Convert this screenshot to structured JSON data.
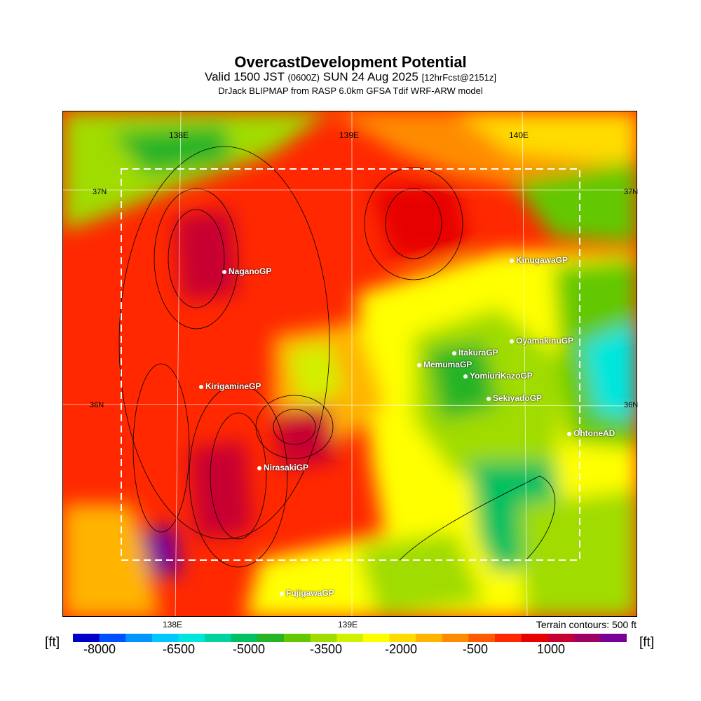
{
  "title": "OvercastDevelopment Potential",
  "subtitle_main": "Valid 1500 JST",
  "subtitle_z": "(0600Z)",
  "subtitle_date": "SUN 24 Aug 2025",
  "subtitle_fcst": "[12hrFcst@2151z]",
  "source": "DrJack BLIPMAP from RASP 6.0km GFSA Tdif WRF-ARW model",
  "terrain_note": "Terrain contours: 500 ft",
  "unit_left": "[ft]",
  "unit_right": "[ft]",
  "lon_labels": {
    "a": "138E",
    "b": "139E",
    "c": "140E"
  },
  "lat_labels": {
    "n37": "37N",
    "n36": "36N"
  },
  "bottom_lon": {
    "a": "138E",
    "b": "139E"
  },
  "colorbar": {
    "ticks": [
      "-8000",
      "-6500",
      "-5000",
      "-3500",
      "-2000",
      "-500",
      "1000"
    ],
    "colors": [
      "#0000c8",
      "#0050ff",
      "#0096ff",
      "#00c8ff",
      "#00e6dc",
      "#00d2a0",
      "#00c060",
      "#28b428",
      "#64c800",
      "#a0dc00",
      "#d2f000",
      "#ffff00",
      "#ffdc00",
      "#ffb400",
      "#ff8c00",
      "#ff5a00",
      "#ff2800",
      "#e60000",
      "#c80032",
      "#a00064",
      "#780096"
    ]
  },
  "places": [
    {
      "name": "NaganoGP"
    },
    {
      "name": "KinugawaGP"
    },
    {
      "name": "OyamakinuGP"
    },
    {
      "name": "ItakuraGP"
    },
    {
      "name": "MemumaGP"
    },
    {
      "name": "YomiuriKazoGP"
    },
    {
      "name": "KirigamineGP"
    },
    {
      "name": "SekiyadoGP"
    },
    {
      "name": "OhtoneAD"
    },
    {
      "name": "NirasakiGP"
    },
    {
      "name": "FujigawaGP"
    }
  ]
}
